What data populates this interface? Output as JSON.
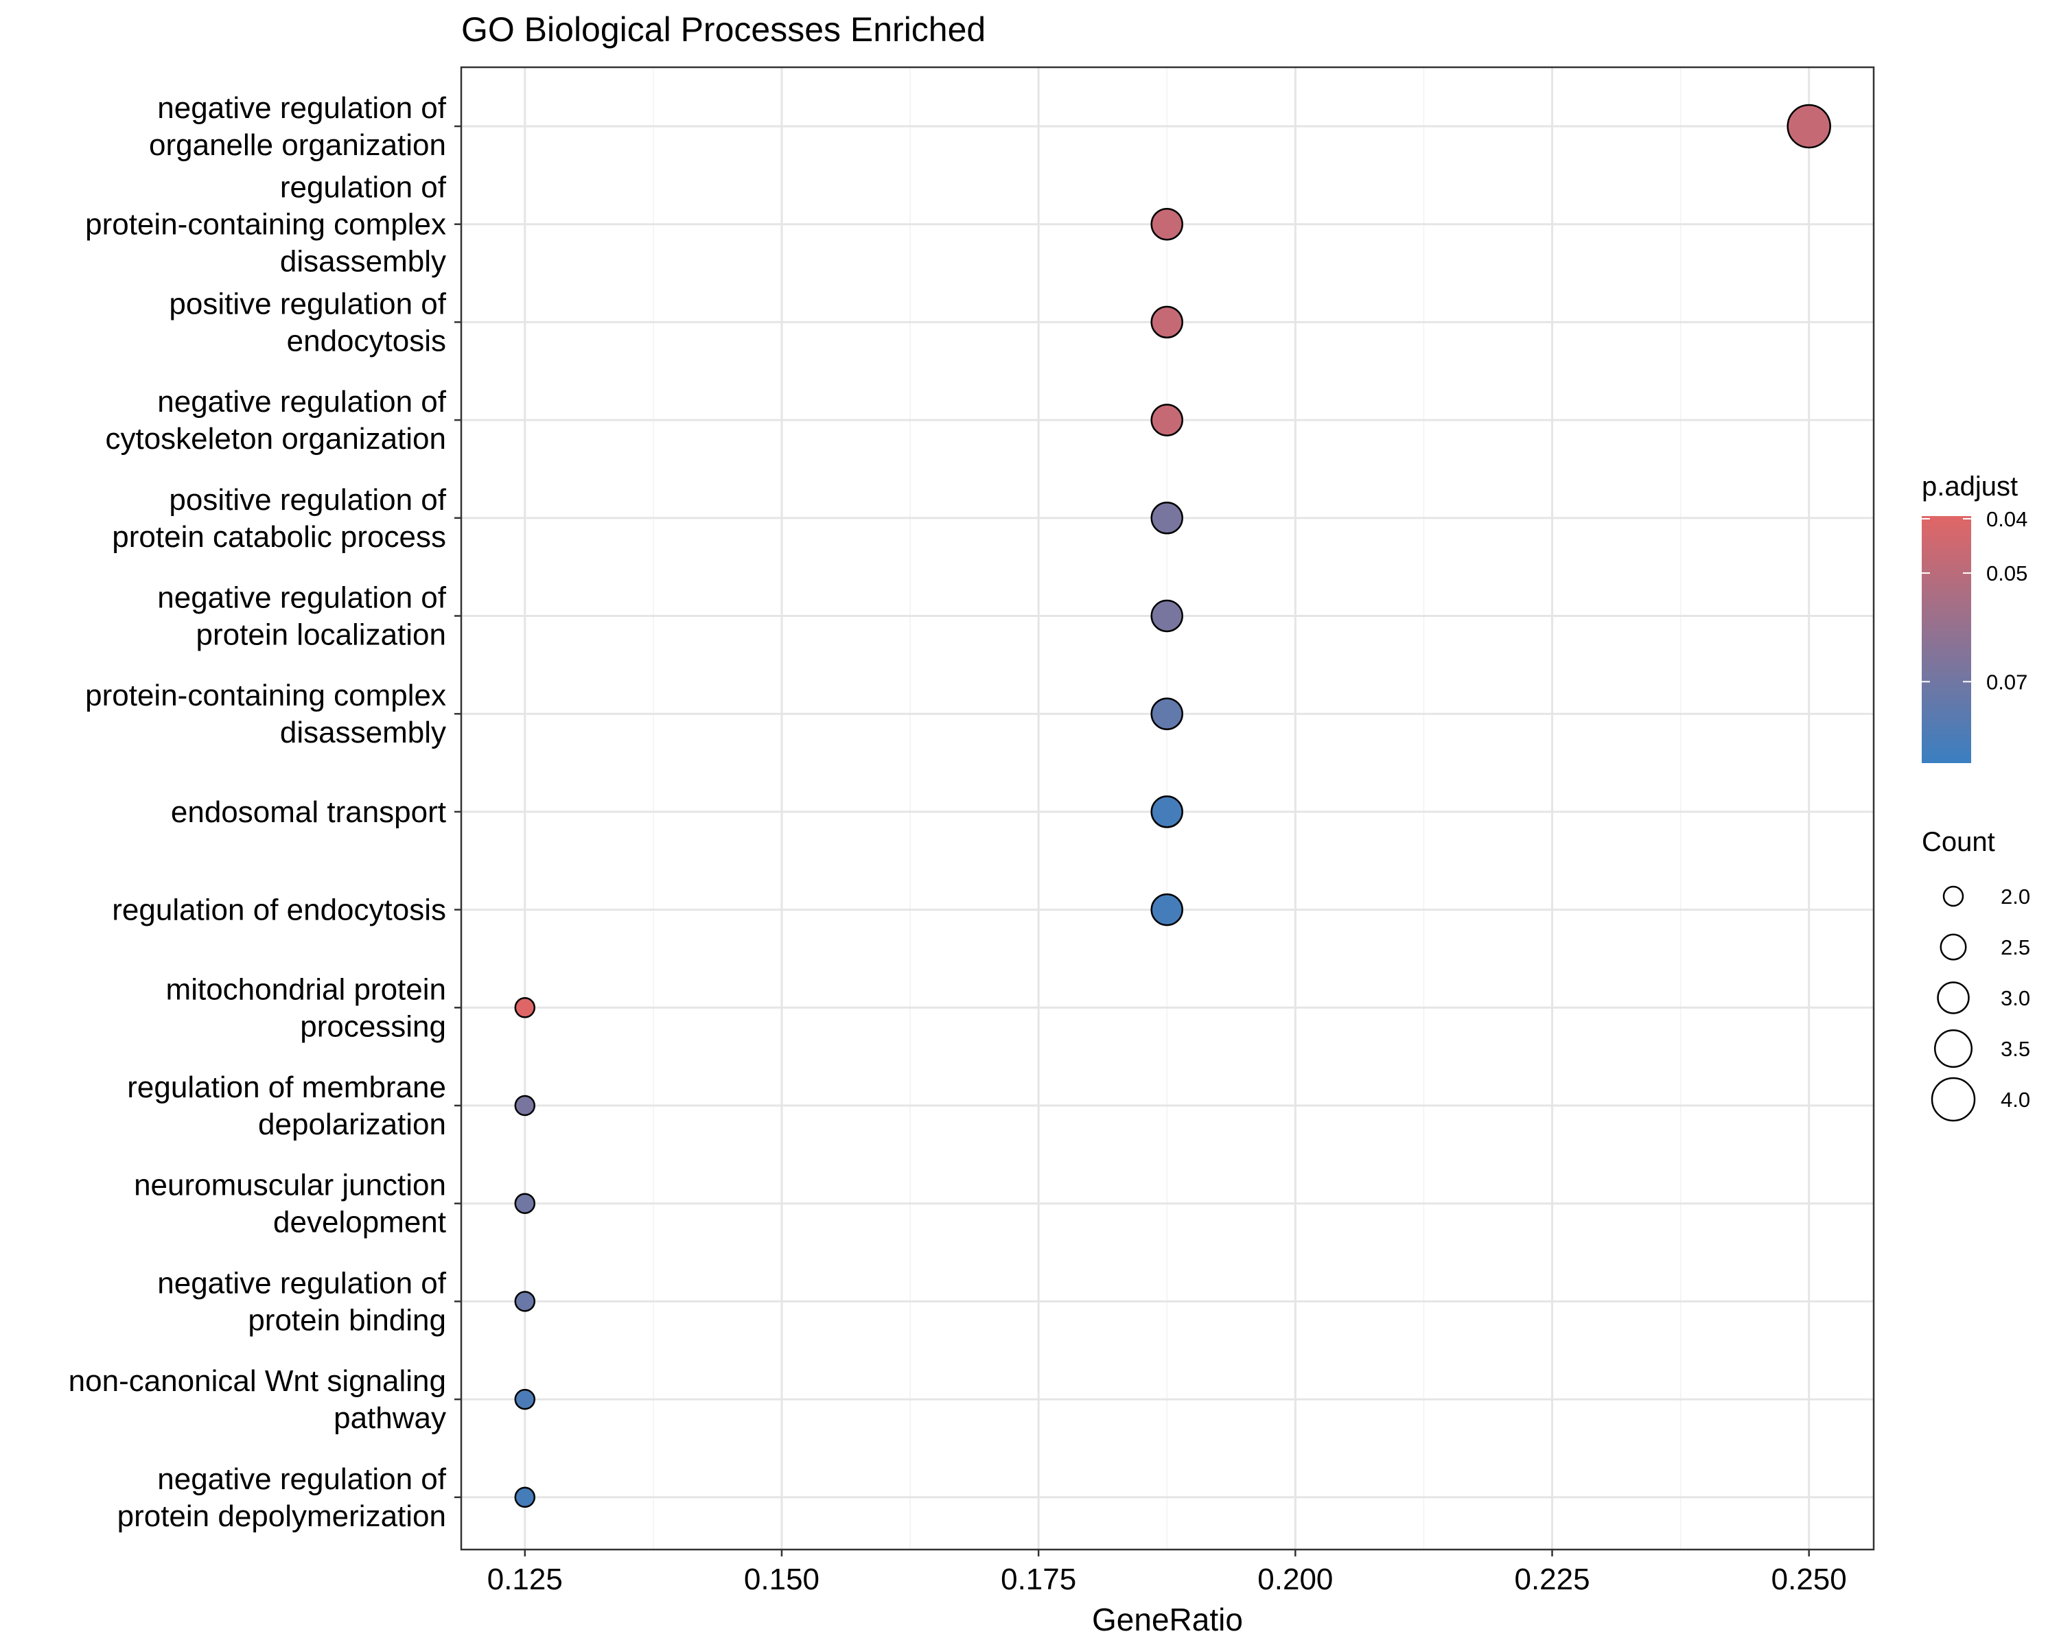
{
  "chart_data": {
    "type": "scatter",
    "title": "GO Biological Processes Enriched",
    "xlabel": "GeneRatio",
    "ylabel": "",
    "xlim": [
      0.1188,
      0.2563
    ],
    "xticks": [
      0.125,
      0.15,
      0.175,
      0.2,
      0.225,
      0.25
    ],
    "xtick_labels": [
      "0.125",
      "0.150",
      "0.175",
      "0.200",
      "0.225",
      "0.250"
    ],
    "grid": true,
    "legend_position": "right",
    "categories": [
      "negative regulation of organelle organization",
      "regulation of protein-containing complex disassembly",
      "positive regulation of endocytosis",
      "negative regulation of cytoskeleton organization",
      "positive regulation of protein catabolic process",
      "negative regulation of protein localization",
      "protein-containing complex disassembly",
      "endosomal transport",
      "regulation of endocytosis",
      "mitochondrial protein processing",
      "regulation of membrane depolarization",
      "neuromuscular junction development",
      "negative regulation of protein binding",
      "non-canonical Wnt signaling pathway",
      "negative regulation of protein depolymerization"
    ],
    "category_label_lines": [
      [
        "negative regulation of",
        "organelle organization"
      ],
      [
        "regulation of",
        "protein-containing complex",
        "disassembly"
      ],
      [
        "positive regulation of",
        "endocytosis"
      ],
      [
        "negative regulation of",
        "cytoskeleton organization"
      ],
      [
        "positive regulation of",
        "protein catabolic process"
      ],
      [
        "negative regulation of",
        "protein localization"
      ],
      [
        "protein-containing complex",
        "disassembly"
      ],
      [
        "endosomal transport"
      ],
      [
        "regulation of endocytosis"
      ],
      [
        "mitochondrial protein",
        "processing"
      ],
      [
        "regulation of membrane",
        "depolarization"
      ],
      [
        "neuromuscular junction",
        "development"
      ],
      [
        "negative regulation of",
        "protein binding"
      ],
      [
        "non-canonical Wnt signaling",
        "pathway"
      ],
      [
        "negative regulation of",
        "protein depolymerization"
      ]
    ],
    "gene_ratio": [
      0.25,
      0.1875,
      0.1875,
      0.1875,
      0.1875,
      0.1875,
      0.1875,
      0.1875,
      0.1875,
      0.125,
      0.125,
      0.125,
      0.125,
      0.125,
      0.125
    ],
    "count": [
      4,
      3,
      3,
      3,
      3,
      3,
      3,
      3,
      3,
      2,
      2,
      2,
      2,
      2,
      2
    ],
    "p_adjust": [
      0.047,
      0.047,
      0.047,
      0.047,
      0.068,
      0.068,
      0.074,
      0.082,
      0.082,
      0.04,
      0.068,
      0.07,
      0.072,
      0.08,
      0.082
    ],
    "color_legend": {
      "title": "p.adjust",
      "low_color": "#E06666",
      "high_color": "#3A7FC1",
      "range": [
        0.0395,
        0.085
      ],
      "breaks": [
        0.04,
        0.05,
        0.07
      ],
      "break_labels": [
        "0.04",
        "0.05",
        "0.07"
      ]
    },
    "size_legend": {
      "title": "Count",
      "breaks": [
        2.0,
        2.5,
        3.0,
        3.5,
        4.0
      ],
      "break_labels": [
        "2.0",
        "2.5",
        "3.0",
        "3.5",
        "4.0"
      ]
    }
  }
}
